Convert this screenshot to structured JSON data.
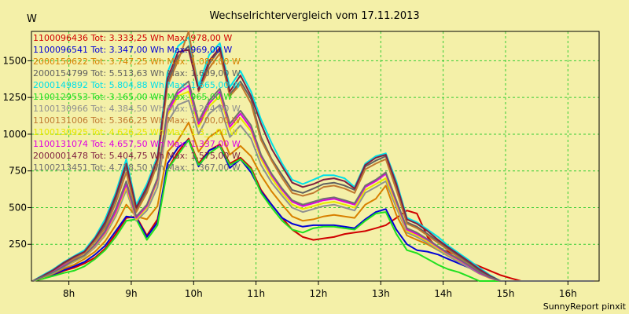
{
  "chart_data": {
    "type": "line",
    "title": "Wechselrichtervergleich vom 17.11.2013",
    "ylabel": "W",
    "xlabel": "",
    "footer": "SunnyReport pinxit",
    "x_unit": "h",
    "x_range": [
      7.4,
      16.5
    ],
    "x_ticks": [
      8,
      9,
      10,
      11,
      12,
      13,
      14,
      15,
      16
    ],
    "x_tick_labels": [
      "8h",
      "9h",
      "10h",
      "11h",
      "12h",
      "13h",
      "14h",
      "15h",
      "16h"
    ],
    "ylim": [
      0,
      1700
    ],
    "y_ticks": [
      250,
      500,
      750,
      1000,
      1250,
      1500
    ],
    "y_tick_labels": [
      "250",
      "500",
      "750",
      "1000",
      "1250",
      "1500"
    ],
    "grid": true,
    "legend_position": "top-left",
    "x": [
      7.42,
      7.58,
      7.75,
      7.92,
      8.08,
      8.25,
      8.42,
      8.58,
      8.75,
      8.92,
      9.08,
      9.25,
      9.42,
      9.58,
      9.75,
      9.92,
      10.08,
      10.25,
      10.42,
      10.58,
      10.75,
      10.92,
      11.08,
      11.25,
      11.42,
      11.58,
      11.75,
      11.92,
      12.08,
      12.25,
      12.42,
      12.58,
      12.75,
      12.92,
      13.08,
      13.25,
      13.42,
      13.58,
      13.75,
      13.92,
      14.08,
      14.25,
      14.42,
      14.58,
      14.75,
      14.92,
      15.08,
      15.25,
      15.42,
      15.58,
      15.75,
      15.92,
      16.08,
      16.25,
      16.42
    ],
    "series": [
      {
        "name": "1100096436",
        "legend": "1100096436 Tot: 3.333,25 Wh Max: 978,00 W",
        "color": "#d00000",
        "values": [
          0,
          15,
          40,
          70,
          90,
          120,
          160,
          220,
          320,
          430,
          440,
          310,
          420,
          760,
          880,
          970,
          800,
          890,
          930,
          800,
          840,
          770,
          620,
          520,
          430,
          350,
          300,
          280,
          290,
          300,
          320,
          330,
          340,
          360,
          380,
          430,
          480,
          460,
          300,
          220,
          200,
          170,
          130,
          100,
          70,
          40,
          20,
          0,
          0,
          0,
          0,
          0,
          0,
          0,
          0
        ]
      },
      {
        "name": "1100096541",
        "legend": "1100096541 Tot: 3.347,00 Wh Max: 969,00 W",
        "color": "#0000d8",
        "values": [
          0,
          20,
          45,
          75,
          100,
          130,
          180,
          240,
          340,
          440,
          430,
          300,
          400,
          800,
          910,
          960,
          780,
          890,
          920,
          770,
          830,
          740,
          610,
          520,
          430,
          390,
          370,
          380,
          380,
          380,
          370,
          360,
          420,
          470,
          490,
          350,
          250,
          210,
          200,
          180,
          150,
          120,
          90,
          60,
          30,
          0,
          0,
          0,
          0,
          0,
          0,
          0,
          0,
          0,
          0
        ]
      },
      {
        "name": "2000150622",
        "legend": "2000150622 Tot: 3.747,25 Wh Max: 1.085,00 W",
        "color": "#d88000",
        "values": [
          0,
          20,
          50,
          85,
          110,
          150,
          200,
          270,
          380,
          520,
          440,
          420,
          510,
          880,
          960,
          1080,
          880,
          980,
          1030,
          860,
          920,
          850,
          720,
          610,
          520,
          440,
          410,
          420,
          440,
          450,
          440,
          430,
          520,
          560,
          650,
          450,
          310,
          280,
          250,
          210,
          170,
          130,
          90,
          50,
          20,
          0,
          0,
          0,
          0,
          0,
          0,
          0,
          0,
          0,
          0
        ]
      },
      {
        "name": "2000154799",
        "legend": "2000154799 Tot: 5.513,63 Wh Max: 1.609,00 W",
        "color": "#606060",
        "values": [
          0,
          30,
          70,
          120,
          160,
          200,
          280,
          380,
          560,
          780,
          480,
          620,
          820,
          1350,
          1530,
          1600,
          1300,
          1480,
          1580,
          1270,
          1360,
          1240,
          980,
          830,
          720,
          620,
          600,
          630,
          660,
          670,
          650,
          620,
          780,
          820,
          850,
          640,
          400,
          370,
          320,
          270,
          220,
          170,
          120,
          70,
          30,
          0,
          0,
          0,
          0,
          0,
          0,
          0,
          0,
          0,
          0
        ]
      },
      {
        "name": "2000149892",
        "legend": "2000149892 Tot: 5.804,88 Wh Max: 1.665,00 W",
        "color": "#00e0e8",
        "values": [
          0,
          40,
          80,
          130,
          170,
          210,
          300,
          420,
          600,
          830,
          520,
          660,
          850,
          1420,
          1600,
          1660,
          1330,
          1540,
          1620,
          1320,
          1430,
          1290,
          1100,
          940,
          800,
          690,
          660,
          690,
          720,
          720,
          700,
          640,
          800,
          850,
          870,
          680,
          430,
          400,
          350,
          300,
          240,
          190,
          140,
          90,
          40,
          0,
          0,
          0,
          0,
          0,
          0,
          0,
          0,
          0,
          0
        ]
      },
      {
        "name": "1100129553",
        "legend": "1100129553 Tot: 3.165,00 Wh Max: 965,00 W",
        "color": "#20e020",
        "values": [
          0,
          15,
          35,
          55,
          70,
          100,
          150,
          210,
          300,
          410,
          420,
          280,
          380,
          760,
          860,
          960,
          790,
          870,
          920,
          790,
          830,
          760,
          600,
          500,
          410,
          350,
          330,
          360,
          370,
          370,
          360,
          350,
          410,
          460,
          470,
          320,
          210,
          190,
          150,
          110,
          80,
          60,
          30,
          0,
          0,
          0,
          0,
          0,
          0,
          0,
          0,
          0,
          0,
          0,
          0
        ]
      },
      {
        "name": "1100130966",
        "legend": "1100130966 Tot: 4.384,50 Wh Max: 1.234,00 W",
        "color": "#909090",
        "values": [
          0,
          25,
          55,
          95,
          130,
          165,
          230,
          310,
          440,
          620,
          410,
          480,
          640,
          1080,
          1200,
          1230,
          1000,
          1140,
          1200,
          980,
          1060,
          970,
          790,
          670,
          580,
          500,
          470,
          490,
          510,
          520,
          500,
          480,
          600,
          640,
          680,
          500,
          330,
          300,
          260,
          210,
          170,
          130,
          90,
          50,
          20,
          0,
          0,
          0,
          0,
          0,
          0,
          0,
          0,
          0,
          0
        ]
      },
      {
        "name": "1100131006",
        "legend": "1100131006 Tot: 5.366,25 Wh Max: 1.700,00 W",
        "color": "#c07830",
        "values": [
          0,
          30,
          65,
          110,
          150,
          190,
          270,
          360,
          530,
          740,
          470,
          600,
          800,
          1330,
          1500,
          1700,
          1290,
          1450,
          1550,
          1260,
          1340,
          1210,
          960,
          820,
          700,
          600,
          580,
          600,
          640,
          650,
          630,
          600,
          760,
          800,
          830,
          620,
          390,
          360,
          310,
          260,
          210,
          160,
          110,
          60,
          25,
          0,
          0,
          0,
          0,
          0,
          0,
          0,
          0,
          0,
          0
        ]
      },
      {
        "name": "1100130925",
        "legend": "1100130925 Tot: 4.626,25 Wh Max: 1.3__,00 W",
        "color": "#e8e800",
        "values": [
          0,
          25,
          60,
          100,
          135,
          170,
          240,
          320,
          460,
          640,
          420,
          500,
          680,
          1130,
          1260,
          1290,
          1050,
          1190,
          1260,
          1030,
          1110,
          1020,
          830,
          700,
          600,
          520,
          490,
          510,
          530,
          540,
          520,
          500,
          620,
          660,
          700,
          520,
          340,
          310,
          270,
          220,
          180,
          140,
          100,
          55,
          20,
          0,
          0,
          0,
          0,
          0,
          0,
          0,
          0,
          0,
          0
        ]
      },
      {
        "name": "1100131074",
        "legend": "1100131074 Tot: 4.657,50 Wh Max: 1.337,00 W",
        "color": "#e000e0",
        "values": [
          0,
          28,
          62,
          105,
          140,
          175,
          245,
          330,
          470,
          660,
          430,
          510,
          690,
          1150,
          1280,
          1330,
          1070,
          1210,
          1290,
          1050,
          1140,
          1040,
          850,
          720,
          620,
          540,
          510,
          530,
          550,
          560,
          540,
          520,
          640,
          680,
          730,
          540,
          350,
          320,
          280,
          230,
          185,
          145,
          100,
          55,
          22,
          0,
          0,
          0,
          0,
          0,
          0,
          0,
          0,
          0,
          0
        ]
      },
      {
        "name": "2000001478",
        "legend": "2000001478 Tot: 5.404,75 Wh Max: 1.575,00 W",
        "color": "#802040",
        "values": [
          0,
          35,
          75,
          125,
          165,
          200,
          290,
          400,
          580,
          800,
          500,
          640,
          830,
          1380,
          1560,
          1575,
          1300,
          1500,
          1590,
          1290,
          1400,
          1260,
          1070,
          900,
          780,
          670,
          640,
          660,
          690,
          700,
          680,
          630,
          790,
          840,
          860,
          660,
          420,
          390,
          340,
          280,
          230,
          180,
          130,
          80,
          35,
          0,
          0,
          0,
          0,
          0,
          0,
          0,
          0,
          0,
          0
        ]
      },
      {
        "name": "1100213451",
        "legend": "1100213451 Tot: 4.718,50 Wh Max: 1.367,00 W",
        "color": "#707070",
        "values": [
          0,
          28,
          60,
          100,
          140,
          175,
          250,
          340,
          490,
          680,
          440,
          520,
          700,
          1170,
          1300,
          1360,
          1090,
          1230,
          1310,
          1070,
          1160,
          1060,
          860,
          730,
          630,
          550,
          520,
          540,
          560,
          570,
          550,
          530,
          650,
          690,
          740,
          550,
          360,
          330,
          285,
          235,
          190,
          150,
          105,
          60,
          25,
          0,
          0,
          0,
          0,
          0,
          0,
          0,
          0,
          0,
          0
        ]
      }
    ]
  }
}
